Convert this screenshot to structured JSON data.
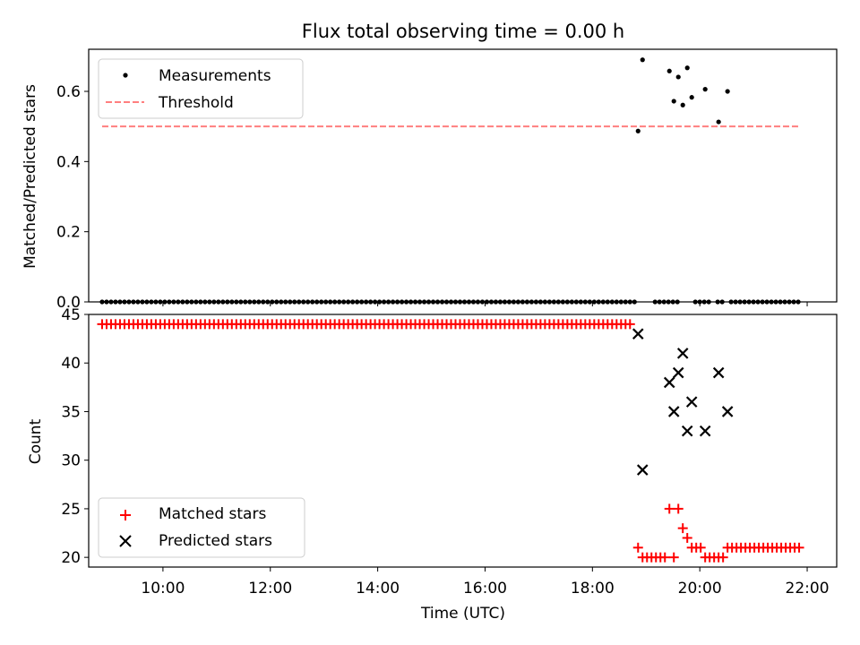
{
  "chart_data": [
    {
      "type": "scatter",
      "title": "Flux total observing time = 0.00 h",
      "xlabel": "",
      "ylabel": "Matched/Predicted stars",
      "xlim": [
        "08:37",
        "22:33"
      ],
      "ylim": [
        0.0,
        0.72
      ],
      "xticks": [
        "10:00",
        "12:00",
        "14:00",
        "16:00",
        "18:00",
        "20:00",
        "22:00"
      ],
      "yticks": [
        "0.0",
        "0.2",
        "0.4",
        "0.6"
      ],
      "legend": {
        "position": "top-left",
        "entries": [
          "Measurements",
          "Threshold"
        ]
      },
      "colors": {
        "measurements": "#000000",
        "threshold": "#ff7f7f"
      },
      "series": [
        {
          "name": "Measurements",
          "kind": "scatter",
          "baseline_value": 0.0,
          "baseline_x_ranges": [
            [
              "08:52",
              "18:48"
            ],
            [
              "19:10",
              "19:38"
            ],
            [
              "19:55",
              "20:02"
            ],
            [
              "20:05",
              "20:12"
            ],
            [
              "20:20",
              "20:28"
            ],
            [
              "20:35",
              "21:52"
            ]
          ],
          "points": [
            {
              "x": "18:51",
              "y": 0.487
            },
            {
              "x": "18:56",
              "y": 0.69
            },
            {
              "x": "19:26",
              "y": 0.658
            },
            {
              "x": "19:31",
              "y": 0.572
            },
            {
              "x": "19:36",
              "y": 0.641
            },
            {
              "x": "19:41",
              "y": 0.561
            },
            {
              "x": "19:46",
              "y": 0.667
            },
            {
              "x": "19:51",
              "y": 0.583
            },
            {
              "x": "20:06",
              "y": 0.606
            },
            {
              "x": "20:21",
              "y": 0.513
            },
            {
              "x": "20:31",
              "y": 0.6
            }
          ]
        },
        {
          "name": "Threshold",
          "kind": "line",
          "style": "dashed",
          "x": [
            "08:52",
            "21:52"
          ],
          "y": [
            0.5,
            0.5
          ]
        }
      ]
    },
    {
      "type": "scatter",
      "title": "",
      "xlabel": "Time (UTC)",
      "ylabel": "Count",
      "xlim": [
        "08:37",
        "22:33"
      ],
      "ylim": [
        19.0,
        45.0
      ],
      "xticks": [
        "10:00",
        "12:00",
        "14:00",
        "16:00",
        "18:00",
        "20:00",
        "22:00"
      ],
      "yticks": [
        "20",
        "25",
        "30",
        "35",
        "40",
        "45"
      ],
      "legend": {
        "position": "bottom-left",
        "entries": [
          "Matched stars",
          "Predicted stars"
        ]
      },
      "colors": {
        "matched": "#ff0000",
        "predicted": "#000000"
      },
      "series": [
        {
          "name": "Matched stars",
          "marker": "+",
          "flat_segment": {
            "from": "08:52",
            "to": "18:46",
            "y": 44
          },
          "points": [
            {
              "x": "18:51",
              "y": 21
            },
            {
              "x": "18:56",
              "y": 20
            },
            {
              "x": "19:01",
              "y": 20
            },
            {
              "x": "19:06",
              "y": 20
            },
            {
              "x": "19:11",
              "y": 20
            },
            {
              "x": "19:16",
              "y": 20
            },
            {
              "x": "19:21",
              "y": 20
            },
            {
              "x": "19:26",
              "y": 25
            },
            {
              "x": "19:31",
              "y": 20
            },
            {
              "x": "19:36",
              "y": 25
            },
            {
              "x": "19:41",
              "y": 23
            },
            {
              "x": "19:46",
              "y": 22
            },
            {
              "x": "19:51",
              "y": 21
            },
            {
              "x": "19:56",
              "y": 21
            },
            {
              "x": "20:01",
              "y": 21
            },
            {
              "x": "20:06",
              "y": 20
            },
            {
              "x": "20:11",
              "y": 20
            },
            {
              "x": "20:16",
              "y": 20
            },
            {
              "x": "20:21",
              "y": 20
            },
            {
              "x": "20:26",
              "y": 20
            }
          ],
          "trailing_segment": {
            "from": "20:31",
            "to": "21:52",
            "y": 21
          }
        },
        {
          "name": "Predicted stars",
          "marker": "x",
          "points": [
            {
              "x": "18:51",
              "y": 43
            },
            {
              "x": "18:56",
              "y": 29
            },
            {
              "x": "19:26",
              "y": 38
            },
            {
              "x": "19:31",
              "y": 35
            },
            {
              "x": "19:36",
              "y": 39
            },
            {
              "x": "19:41",
              "y": 41
            },
            {
              "x": "19:46",
              "y": 33
            },
            {
              "x": "19:51",
              "y": 36
            },
            {
              "x": "20:06",
              "y": 33
            },
            {
              "x": "20:21",
              "y": 39
            },
            {
              "x": "20:31",
              "y": 35
            }
          ]
        }
      ]
    }
  ]
}
